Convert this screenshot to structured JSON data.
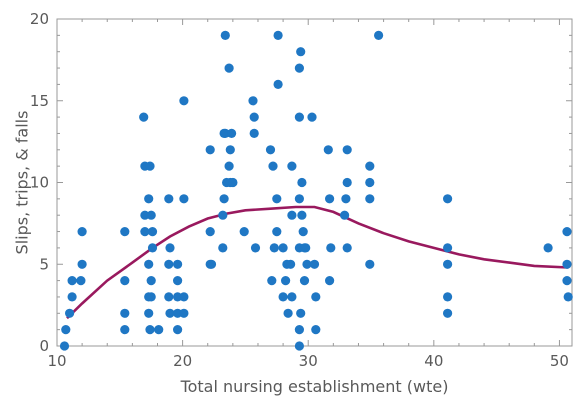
{
  "chart_data": {
    "type": "scatter",
    "xlabel": "Total nursing establishment (wte)",
    "ylabel": "Slips, trips, & falls",
    "xlim": [
      10,
      51
    ],
    "ylim": [
      0,
      20
    ],
    "xticks": [
      10,
      20,
      30,
      40,
      50
    ],
    "yticks": [
      0,
      5,
      10,
      15,
      20
    ],
    "grid": false,
    "colors": {
      "points": "#1f77c4",
      "fit_line": "#99195e",
      "axis": "#999999",
      "text": "#595959"
    },
    "series": [
      {
        "kind": "points",
        "points": [
          [
            10.6,
            0
          ],
          [
            10.7,
            1
          ],
          [
            11.0,
            2
          ],
          [
            11.2,
            3
          ],
          [
            11.2,
            4
          ],
          [
            11.9,
            4
          ],
          [
            12.0,
            5
          ],
          [
            12.0,
            7
          ],
          [
            15.4,
            1
          ],
          [
            15.4,
            2
          ],
          [
            15.4,
            4
          ],
          [
            15.4,
            7
          ],
          [
            16.9,
            14
          ],
          [
            17.0,
            7
          ],
          [
            17.0,
            8
          ],
          [
            17.0,
            11
          ],
          [
            17.3,
            2
          ],
          [
            17.3,
            3
          ],
          [
            17.3,
            5
          ],
          [
            17.3,
            9
          ],
          [
            17.4,
            1
          ],
          [
            17.4,
            11
          ],
          [
            17.5,
            3
          ],
          [
            17.5,
            8
          ],
          [
            17.5,
            4
          ],
          [
            17.6,
            6
          ],
          [
            17.6,
            7
          ],
          [
            18.1,
            1
          ],
          [
            18.9,
            3
          ],
          [
            18.9,
            5
          ],
          [
            18.9,
            9
          ],
          [
            19.0,
            2
          ],
          [
            19.0,
            6
          ],
          [
            19.6,
            1
          ],
          [
            19.6,
            2
          ],
          [
            19.6,
            3
          ],
          [
            19.6,
            4
          ],
          [
            19.6,
            5
          ],
          [
            20.1,
            9
          ],
          [
            20.1,
            2
          ],
          [
            20.1,
            3
          ],
          [
            20.1,
            15
          ],
          [
            22.2,
            5
          ],
          [
            22.2,
            12
          ],
          [
            22.2,
            7
          ],
          [
            22.3,
            5
          ],
          [
            23.2,
            6
          ],
          [
            23.2,
            8
          ],
          [
            23.3,
            13
          ],
          [
            23.3,
            9
          ],
          [
            23.4,
            19
          ],
          [
            23.4,
            13
          ],
          [
            23.5,
            10
          ],
          [
            23.7,
            17
          ],
          [
            23.7,
            11
          ],
          [
            23.8,
            10
          ],
          [
            23.8,
            12
          ],
          [
            23.9,
            13
          ],
          [
            24.0,
            10
          ],
          [
            24.9,
            7
          ],
          [
            25.6,
            15
          ],
          [
            25.7,
            14
          ],
          [
            25.7,
            13
          ],
          [
            25.8,
            6
          ],
          [
            27.0,
            12
          ],
          [
            27.1,
            4
          ],
          [
            27.2,
            11
          ],
          [
            27.3,
            6
          ],
          [
            27.5,
            7
          ],
          [
            27.5,
            9
          ],
          [
            27.6,
            16
          ],
          [
            27.6,
            19
          ],
          [
            28.0,
            6
          ],
          [
            28.0,
            3
          ],
          [
            28.2,
            4
          ],
          [
            28.3,
            5
          ],
          [
            28.4,
            2
          ],
          [
            28.6,
            5
          ],
          [
            28.7,
            8
          ],
          [
            28.7,
            3
          ],
          [
            28.7,
            11
          ],
          [
            29.3,
            0
          ],
          [
            29.3,
            1
          ],
          [
            29.3,
            6
          ],
          [
            29.3,
            14
          ],
          [
            29.3,
            9
          ],
          [
            29.3,
            17
          ],
          [
            29.4,
            18
          ],
          [
            29.4,
            2
          ],
          [
            29.5,
            8
          ],
          [
            29.5,
            10
          ],
          [
            29.6,
            7
          ],
          [
            29.7,
            6
          ],
          [
            29.7,
            4
          ],
          [
            29.8,
            6
          ],
          [
            29.9,
            5
          ],
          [
            30.3,
            14
          ],
          [
            30.5,
            5
          ],
          [
            30.6,
            3
          ],
          [
            30.6,
            1
          ],
          [
            31.6,
            12
          ],
          [
            31.7,
            9
          ],
          [
            31.7,
            4
          ],
          [
            31.8,
            6
          ],
          [
            32.9,
            8
          ],
          [
            33.0,
            9
          ],
          [
            33.1,
            10
          ],
          [
            33.1,
            12
          ],
          [
            33.1,
            6
          ],
          [
            34.9,
            5
          ],
          [
            34.9,
            9
          ],
          [
            34.9,
            10
          ],
          [
            34.9,
            11
          ],
          [
            35.6,
            19
          ],
          [
            41.1,
            2
          ],
          [
            41.1,
            3
          ],
          [
            41.1,
            5
          ],
          [
            41.1,
            6
          ],
          [
            41.1,
            9
          ],
          [
            49.1,
            6
          ],
          [
            50.6,
            7
          ],
          [
            50.6,
            5
          ],
          [
            50.6,
            4
          ],
          [
            50.7,
            3
          ]
        ]
      },
      {
        "kind": "line",
        "points": [
          [
            10.8,
            1.7
          ],
          [
            12,
            2.6
          ],
          [
            14,
            4.0
          ],
          [
            16,
            5.1
          ],
          [
            17.6,
            6.0
          ],
          [
            19,
            6.7
          ],
          [
            20.5,
            7.3
          ],
          [
            22,
            7.8
          ],
          [
            23.5,
            8.1
          ],
          [
            25,
            8.3
          ],
          [
            27,
            8.4
          ],
          [
            29,
            8.5
          ],
          [
            30.5,
            8.5
          ],
          [
            32,
            8.2
          ],
          [
            34,
            7.5
          ],
          [
            36,
            6.9
          ],
          [
            38,
            6.4
          ],
          [
            40,
            6.0
          ],
          [
            42,
            5.6
          ],
          [
            44,
            5.3
          ],
          [
            46,
            5.1
          ],
          [
            48,
            4.9
          ],
          [
            50.7,
            4.8
          ]
        ]
      }
    ]
  }
}
